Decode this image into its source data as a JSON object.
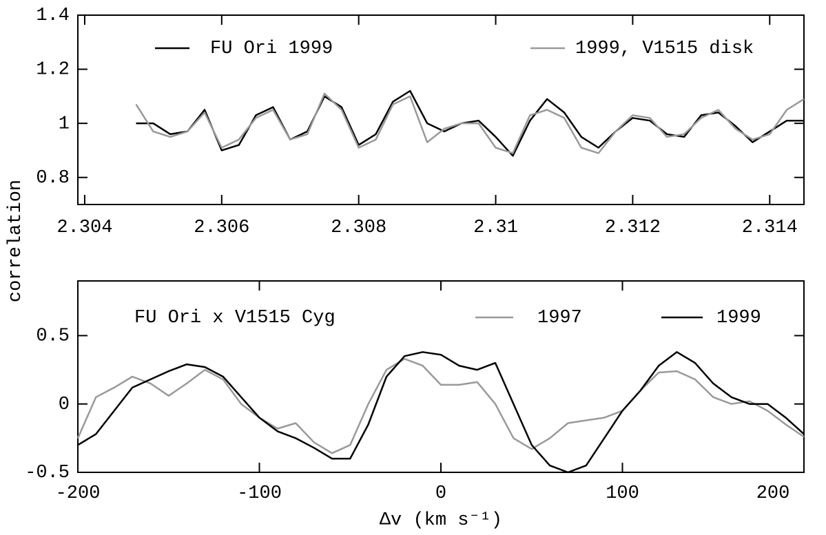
{
  "shared_ylabel": "correlation",
  "chart_data": [
    {
      "type": "line",
      "x": [
        2.30475,
        2.305,
        2.30525,
        2.3055,
        2.30575,
        2.306,
        2.30625,
        2.3065,
        2.30675,
        2.307,
        2.30725,
        2.3075,
        2.30775,
        2.308,
        2.30825,
        2.3085,
        2.30875,
        2.309,
        2.30925,
        2.3095,
        2.30975,
        2.31,
        2.31025,
        2.3105,
        2.31075,
        2.311,
        2.31125,
        2.3115,
        2.31175,
        2.312,
        2.31225,
        2.3125,
        2.31275,
        2.313,
        2.31325,
        2.3135,
        2.31375,
        2.314,
        2.31425,
        2.3145
      ],
      "series": [
        {
          "name": "FU Ori 1999",
          "color": "#000000",
          "values": [
            1.0,
            1.0,
            0.96,
            0.97,
            1.05,
            0.9,
            0.92,
            1.03,
            1.06,
            0.94,
            0.97,
            1.1,
            1.06,
            0.92,
            0.96,
            1.08,
            1.12,
            1.0,
            0.97,
            1.0,
            1.01,
            0.95,
            0.88,
            1.01,
            1.09,
            1.04,
            0.95,
            0.91,
            0.97,
            1.02,
            1.01,
            0.96,
            0.95,
            1.03,
            1.04,
            0.99,
            0.93,
            0.97,
            1.01,
            1.01
          ]
        },
        {
          "name": "1999, V1515 disk",
          "color": "#999999",
          "values": [
            1.07,
            0.97,
            0.95,
            0.97,
            1.04,
            0.91,
            0.94,
            1.02,
            1.05,
            0.94,
            0.96,
            1.11,
            1.05,
            0.91,
            0.94,
            1.07,
            1.1,
            0.93,
            0.98,
            1.0,
            1.0,
            0.91,
            0.89,
            1.03,
            1.05,
            1.02,
            0.91,
            0.89,
            0.97,
            1.03,
            1.02,
            0.95,
            0.96,
            1.02,
            1.05,
            0.98,
            0.94,
            0.96,
            1.05,
            1.09
          ]
        }
      ],
      "xlim": [
        2.3039,
        2.3145
      ],
      "ylim": [
        0.7,
        1.4
      ],
      "xticks": [
        2.304,
        2.306,
        2.308,
        2.31,
        2.312,
        2.314
      ],
      "yticks": [
        0.8,
        1,
        1.2,
        1.4
      ]
    },
    {
      "type": "line",
      "annotation": "FU Ori x V1515 Cyg",
      "xlabel": "Δv (km s⁻¹)",
      "x": [
        -200,
        -190,
        -180,
        -170,
        -160,
        -150,
        -140,
        -130,
        -120,
        -110,
        -100,
        -90,
        -80,
        -70,
        -60,
        -50,
        -40,
        -30,
        -20,
        -10,
        0,
        10,
        20,
        30,
        40,
        50,
        60,
        70,
        80,
        90,
        100,
        110,
        120,
        130,
        140,
        150,
        160,
        170,
        180,
        190,
        200
      ],
      "series": [
        {
          "name": "1997",
          "color": "#999999",
          "values": [
            -0.25,
            0.05,
            0.12,
            0.2,
            0.15,
            0.06,
            0.15,
            0.25,
            0.18,
            0.0,
            -0.1,
            -0.18,
            -0.14,
            -0.28,
            -0.36,
            -0.3,
            0.0,
            0.25,
            0.33,
            0.28,
            0.14,
            0.14,
            0.16,
            0.0,
            -0.25,
            -0.33,
            -0.25,
            -0.14,
            -0.12,
            -0.1,
            -0.05,
            0.1,
            0.23,
            0.24,
            0.18,
            0.05,
            0.0,
            0.02,
            -0.05,
            -0.15,
            -0.24
          ]
        },
        {
          "name": "1999",
          "color": "#000000",
          "values": [
            -0.3,
            -0.22,
            -0.05,
            0.12,
            0.18,
            0.24,
            0.29,
            0.27,
            0.2,
            0.05,
            -0.1,
            -0.2,
            -0.25,
            -0.32,
            -0.4,
            -0.4,
            -0.15,
            0.2,
            0.35,
            0.38,
            0.36,
            0.28,
            0.25,
            0.3,
            0.0,
            -0.3,
            -0.45,
            -0.5,
            -0.45,
            -0.25,
            -0.05,
            0.1,
            0.28,
            0.38,
            0.3,
            0.15,
            0.05,
            0.0,
            0.0,
            -0.1,
            -0.22
          ]
        }
      ],
      "xlim": [
        -200,
        200
      ],
      "ylim": [
        -0.5,
        0.9
      ],
      "xticks": [
        -200,
        -100,
        0,
        100,
        200
      ],
      "yticks": [
        -0.5,
        0,
        0.5
      ]
    }
  ]
}
